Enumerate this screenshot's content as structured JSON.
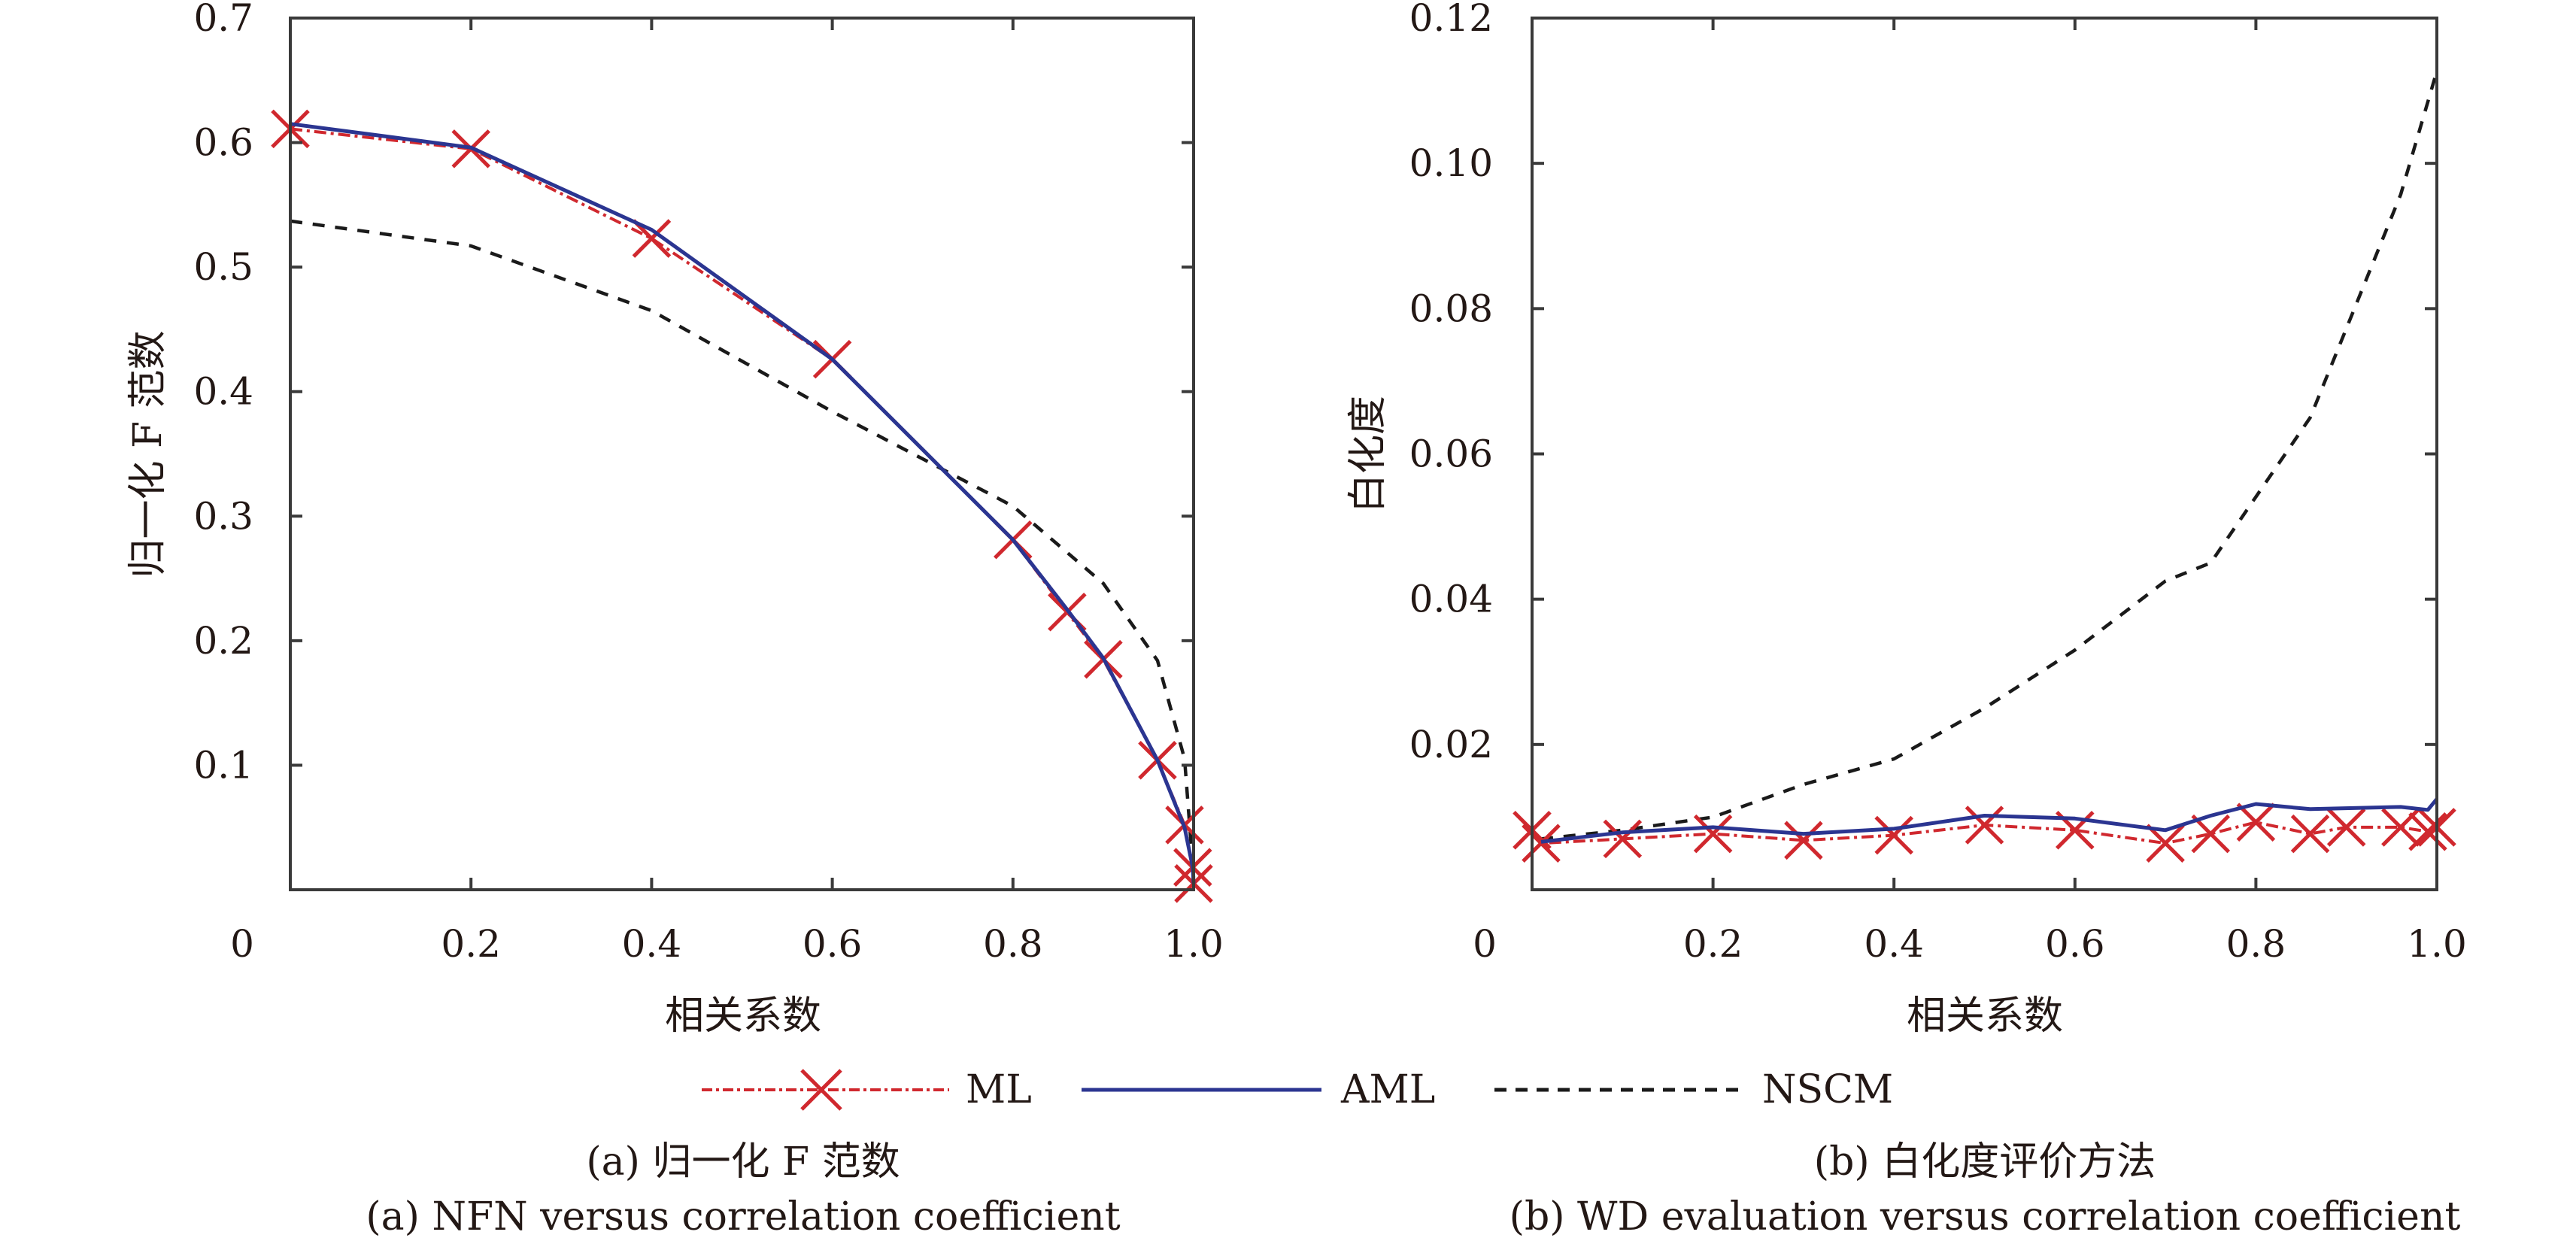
{
  "colors": {
    "ml": "#d0282e",
    "aml": "#2b3591",
    "nscm": "#1a1a1a",
    "axis": "#3a3a3a"
  },
  "legend": {
    "items": [
      {
        "name": "ML",
        "style": "dash-dot with x markers"
      },
      {
        "name": "AML",
        "style": "solid"
      },
      {
        "name": "NSCM",
        "style": "dashed"
      }
    ]
  },
  "chart_data": [
    {
      "type": "line",
      "title": "",
      "caption_cn": "(a) 归一化 F 范数",
      "caption_en": "(a) NFN versus correlation coefficient",
      "xlabel": "相关系数",
      "ylabel": "归一化 F 范数",
      "xlim": [
        0,
        1.0
      ],
      "ylim": [
        0,
        0.7
      ],
      "xticks": [
        0,
        0.2,
        0.4,
        0.6,
        0.8,
        1.0
      ],
      "xtick_labels": [
        "0",
        "0.2",
        "0.4",
        "0.6",
        "0.8",
        "1.0"
      ],
      "yticks": [
        0.1,
        0.2,
        0.3,
        0.4,
        0.5,
        0.6,
        0.7
      ],
      "ytick_labels": [
        "0.1",
        "0.2",
        "0.3",
        "0.4",
        "0.5",
        "0.6",
        "0.7"
      ],
      "grid": false,
      "series": [
        {
          "name": "ML",
          "x": [
            0,
            0.2,
            0.4,
            0.6,
            0.8,
            0.86,
            0.9,
            0.96,
            0.99,
            0.999,
            1.0
          ],
          "y": [
            0.611,
            0.595,
            0.523,
            0.426,
            0.281,
            0.223,
            0.185,
            0.104,
            0.052,
            0.018,
            0.005
          ]
        },
        {
          "name": "AML",
          "x": [
            0,
            0.2,
            0.4,
            0.6,
            0.8,
            0.86,
            0.9,
            0.96,
            0.99,
            0.999,
            1.0
          ],
          "y": [
            0.615,
            0.596,
            0.53,
            0.426,
            0.281,
            0.225,
            0.186,
            0.104,
            0.05,
            0.018,
            0.005
          ]
        },
        {
          "name": "NSCM",
          "x": [
            0,
            0.2,
            0.4,
            0.6,
            0.8,
            0.9,
            0.96,
            0.99,
            1.0
          ],
          "y": [
            0.537,
            0.517,
            0.465,
            0.384,
            0.308,
            0.246,
            0.184,
            0.105,
            0.01
          ]
        }
      ]
    },
    {
      "type": "line",
      "title": "",
      "caption_cn": "(b) 白化度评价方法",
      "caption_en": "(b) WD evaluation versus correlation coefficient",
      "xlabel": "相关系数",
      "ylabel": "白化度",
      "xlim": [
        0,
        1.0
      ],
      "ylim": [
        0,
        0.12
      ],
      "xticks": [
        0,
        0.2,
        0.4,
        0.6,
        0.8,
        1.0
      ],
      "xtick_labels": [
        "0",
        "0.2",
        "0.4",
        "0.6",
        "0.8",
        "1.0"
      ],
      "yticks": [
        0.02,
        0.04,
        0.06,
        0.08,
        0.1,
        0.12
      ],
      "ytick_labels": [
        "0.02",
        "0.04",
        "0.06",
        "0.08",
        "0.10",
        "0.12"
      ],
      "grid": false,
      "series": [
        {
          "name": "ML",
          "x": [
            0,
            0.01,
            0.1,
            0.2,
            0.3,
            0.4,
            0.5,
            0.6,
            0.7,
            0.75,
            0.8,
            0.86,
            0.9,
            0.96,
            0.99,
            1.0
          ],
          "y": [
            0.0082,
            0.0064,
            0.007,
            0.0077,
            0.0068,
            0.0075,
            0.0089,
            0.0082,
            0.0064,
            0.0077,
            0.0093,
            0.0077,
            0.0086,
            0.0086,
            0.008,
            0.0086
          ]
        },
        {
          "name": "AML",
          "x": [
            0.01,
            0.1,
            0.2,
            0.3,
            0.4,
            0.5,
            0.6,
            0.7,
            0.75,
            0.8,
            0.86,
            0.96,
            0.99,
            1.0
          ],
          "y": [
            0.0066,
            0.0079,
            0.0086,
            0.0077,
            0.0084,
            0.0102,
            0.0098,
            0.0082,
            0.0102,
            0.0118,
            0.0111,
            0.0114,
            0.011,
            0.0125
          ]
        },
        {
          "name": "NSCM",
          "x": [
            0.01,
            0.1,
            0.2,
            0.3,
            0.4,
            0.5,
            0.6,
            0.7,
            0.75,
            0.86,
            0.96,
            1.0
          ],
          "y": [
            0.007,
            0.0082,
            0.01,
            0.0145,
            0.018,
            0.025,
            0.033,
            0.0425,
            0.045,
            0.065,
            0.0957,
            0.1127
          ]
        }
      ]
    }
  ]
}
